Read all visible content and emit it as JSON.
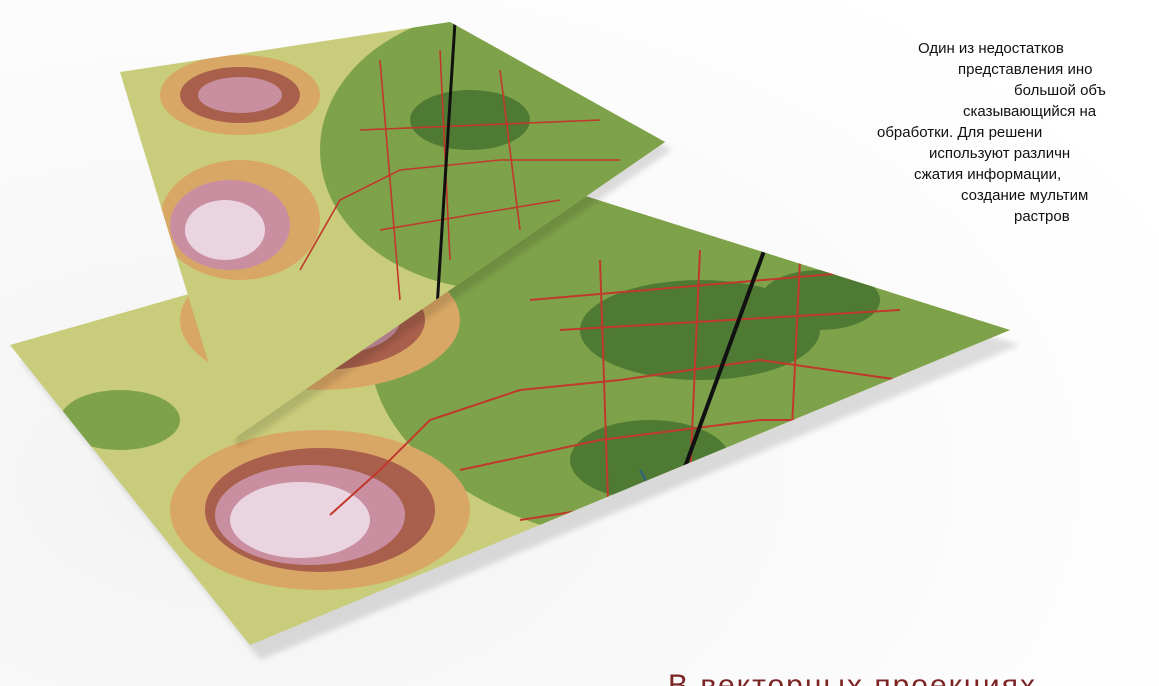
{
  "text": {
    "paragraph_lines": [
      "Один из недостатков",
      "представления ино",
      "большой объ",
      "сказывающийся на",
      "обработки. Для решени",
      "используют различн",
      "сжатия информации,",
      "создание мультим",
      "растров"
    ],
    "heading": "В векторных проекциях"
  }
}
